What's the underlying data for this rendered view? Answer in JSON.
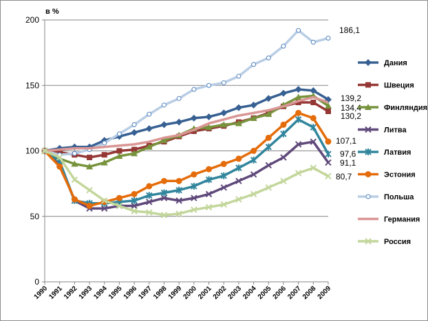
{
  "chart_data": {
    "type": "line",
    "ylabel": "в %",
    "ylim": [
      0,
      200
    ],
    "yticks": [
      0,
      50,
      100,
      150,
      200
    ],
    "grid": "horizontal",
    "legend_position": "right",
    "x": [
      "1990",
      "1991",
      "1992",
      "1993",
      "1994",
      "1995",
      "1996",
      "1997",
      "1998",
      "1999",
      "2000",
      "2001",
      "2002",
      "2003",
      "2004",
      "2005",
      "2006",
      "2007",
      "2008",
      "2009"
    ],
    "series": [
      {
        "name": "Дания",
        "color": "#376092",
        "marker": "diamond",
        "label": "139,2",
        "values": [
          100,
          102,
          103,
          103,
          108,
          111,
          114,
          117,
          120,
          122,
          125,
          126,
          129,
          133,
          135,
          140,
          144,
          147,
          146,
          139.2
        ]
      },
      {
        "name": "Швеция",
        "color": "#953735",
        "marker": "square",
        "label": "130,2",
        "values": [
          100,
          99,
          97,
          95,
          97,
          100,
          101,
          104,
          107,
          111,
          115,
          117,
          119,
          122,
          125,
          129,
          134,
          137,
          137,
          130.2
        ]
      },
      {
        "name": "Финляндия",
        "color": "#77933c",
        "marker": "triangle",
        "label": "134,4",
        "values": [
          100,
          94,
          90,
          88,
          91,
          96,
          98,
          103,
          108,
          112,
          117,
          118,
          120,
          121,
          125,
          128,
          135,
          141,
          142,
          134.4
        ]
      },
      {
        "name": "Литва",
        "color": "#5f497a",
        "marker": "x",
        "label": "91,1",
        "values": [
          100,
          90,
          62,
          56,
          56,
          58,
          58,
          61,
          64,
          62,
          64,
          67,
          72,
          77,
          82,
          89,
          95,
          105,
          107,
          91.1
        ]
      },
      {
        "name": "Латвия",
        "color": "#31859c",
        "marker": "star",
        "label": "97,6",
        "values": [
          100,
          92,
          62,
          60,
          60,
          61,
          62,
          66,
          68,
          70,
          73,
          78,
          81,
          87,
          93,
          103,
          113,
          124,
          118,
          97.6
        ]
      },
      {
        "name": "Эстония",
        "color": "#e46c0a",
        "marker": "circle",
        "label": "107,1",
        "values": [
          100,
          88,
          63,
          58,
          61,
          64,
          67,
          73,
          77,
          77,
          82,
          86,
          90,
          94,
          100,
          110,
          120,
          129,
          125,
          107.1
        ]
      },
      {
        "name": "Польша",
        "color": "#b9cde5",
        "marker": "hollow-circle",
        "label": "186,1",
        "values": [
          100,
          97,
          98,
          101,
          106,
          113,
          120,
          128,
          135,
          140,
          147,
          150,
          152,
          157,
          166,
          171,
          180,
          192,
          183,
          186.1
        ]
      },
      {
        "name": "Германия",
        "color": "#d99694",
        "marker": "none",
        "label": "",
        "values": [
          100,
          101,
          102,
          102,
          103,
          104,
          105,
          107,
          110,
          112,
          116,
          121,
          124,
          127,
          129,
          131,
          134,
          138,
          141,
          137
        ]
      },
      {
        "name": "Россия",
        "color": "#c3d69b",
        "marker": "x",
        "label": "80,7",
        "values": [
          100,
          95,
          78,
          70,
          62,
          58,
          54,
          53,
          51,
          52,
          55,
          57,
          59,
          63,
          67,
          72,
          77,
          83,
          87,
          80.7
        ]
      }
    ]
  }
}
